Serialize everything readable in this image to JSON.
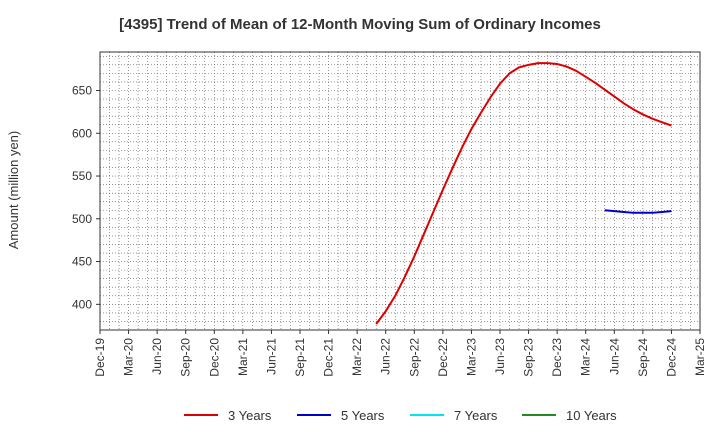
{
  "chart_data": {
    "type": "line",
    "title": "[4395]  Trend of Mean of 12-Month Moving Sum of Ordinary Incomes",
    "ylabel": "Amount (million yen)",
    "xlabel": "",
    "ylim": [
      370,
      695
    ],
    "yticks": [
      400,
      450,
      500,
      550,
      600,
      650
    ],
    "xlim": [
      "2019-12",
      "2025-03"
    ],
    "xticks": [
      "Dec-19",
      "Mar-20",
      "Jun-20",
      "Sep-20",
      "Dec-20",
      "Mar-21",
      "Jun-21",
      "Sep-21",
      "Dec-21",
      "Mar-22",
      "Jun-22",
      "Sep-22",
      "Dec-22",
      "Mar-23",
      "Jun-23",
      "Sep-23",
      "Dec-23",
      "Mar-24",
      "Jun-24",
      "Sep-24",
      "Dec-24",
      "Mar-25"
    ],
    "grid": true,
    "legend_position": "bottom",
    "series": [
      {
        "name": "3 Years",
        "color": "#dd0000",
        "points": [
          [
            "2022-05",
            377
          ],
          [
            "2022-06",
            392
          ],
          [
            "2022-07",
            410
          ],
          [
            "2022-08",
            432
          ],
          [
            "2022-09",
            456
          ],
          [
            "2022-10",
            482
          ],
          [
            "2022-11",
            508
          ],
          [
            "2022-12",
            534
          ],
          [
            "2023-01",
            559
          ],
          [
            "2023-02",
            583
          ],
          [
            "2023-03",
            605
          ],
          [
            "2023-04",
            624
          ],
          [
            "2023-05",
            642
          ],
          [
            "2023-06",
            658
          ],
          [
            "2023-07",
            670
          ],
          [
            "2023-08",
            677
          ],
          [
            "2023-09",
            680
          ],
          [
            "2023-10",
            682
          ],
          [
            "2023-11",
            682
          ],
          [
            "2023-12",
            681
          ],
          [
            "2024-01",
            678
          ],
          [
            "2024-02",
            673
          ],
          [
            "2024-03",
            666
          ],
          [
            "2024-04",
            659
          ],
          [
            "2024-05",
            651
          ],
          [
            "2024-06",
            643
          ],
          [
            "2024-07",
            635
          ],
          [
            "2024-08",
            628
          ],
          [
            "2024-09",
            622
          ],
          [
            "2024-10",
            617
          ],
          [
            "2024-11",
            613
          ],
          [
            "2024-12",
            609
          ]
        ]
      },
      {
        "name": "5 Years",
        "color": "#0000cc",
        "points": [
          [
            "2024-05",
            510
          ],
          [
            "2024-06",
            509
          ],
          [
            "2024-07",
            508
          ],
          [
            "2024-08",
            507
          ],
          [
            "2024-09",
            507
          ],
          [
            "2024-10",
            507
          ],
          [
            "2024-11",
            508
          ],
          [
            "2024-12",
            509
          ]
        ]
      },
      {
        "name": "7 Years",
        "color": "#00e5ee",
        "points": []
      },
      {
        "name": "10 Years",
        "color": "#228b22",
        "points": []
      }
    ]
  }
}
